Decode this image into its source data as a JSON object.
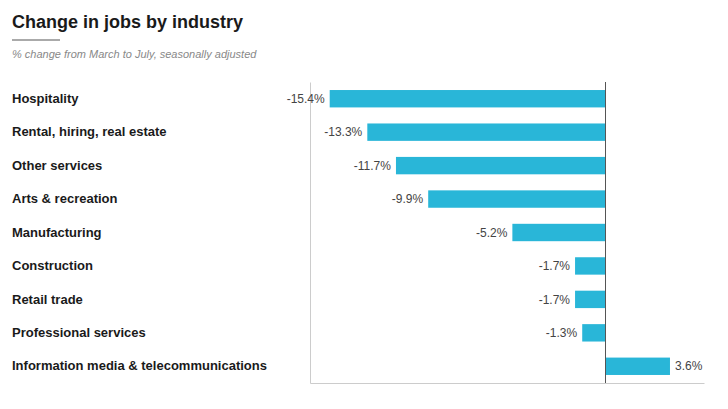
{
  "chart_data": {
    "type": "bar",
    "orientation": "horizontal",
    "title": "Change in jobs by industry",
    "subtitle": "% change from March to July, seasonally adjusted",
    "categories": [
      "Hospitality",
      "Rental, hiring, real estate",
      "Other services",
      "Arts & recreation",
      "Manufacturing",
      "Construction",
      "Retail trade",
      "Professional services",
      "Information media & telecommunications"
    ],
    "values": [
      -15.4,
      -13.3,
      -11.7,
      -9.9,
      -5.2,
      -1.7,
      -1.7,
      -1.3,
      3.6
    ],
    "value_labels": [
      "-15.4%",
      "-13.3%",
      "-11.7%",
      "-9.9%",
      "-5.2%",
      "-1.7%",
      "-1.7%",
      "-1.3%",
      "3.6%"
    ],
    "data_labels": true,
    "color": "#29b6d8",
    "xlim": [
      -16.5,
      5.5
    ],
    "xticks": [],
    "tick_labels": "y",
    "grid": false
  }
}
